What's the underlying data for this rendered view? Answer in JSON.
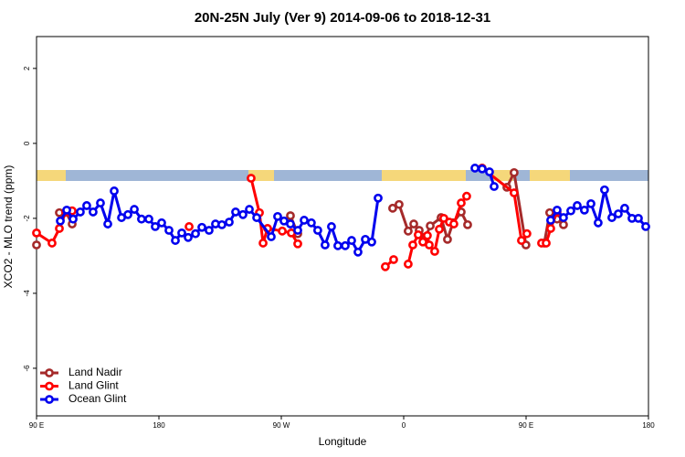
{
  "chart_data": {
    "type": "line",
    "title": "20N-25N July (Ver 9)   2014-09-06 to 2018-12-31",
    "x_label": "Longitude",
    "y_label": "XCO2 - MLO trend (ppm)",
    "xlim": [
      90,
      540
    ],
    "ylim": [
      -7.27,
      2.85
    ],
    "xticks": [
      {
        "value": 90,
        "label": "90 E"
      },
      {
        "value": 180,
        "label": "180"
      },
      {
        "value": 270,
        "label": "90 W"
      },
      {
        "value": 360,
        "label": "0"
      },
      {
        "value": 450,
        "label": "90 E"
      },
      {
        "value": 540,
        "label": "180"
      }
    ],
    "yticks": [
      -6,
      -4,
      -2,
      0,
      2
    ],
    "legend": "bottom-left",
    "series": [
      {
        "name": "Land Nadir",
        "color": "#a52a2a",
        "x": [
          90,
          null,
          106.8,
          111.5,
          116.2,
          null,
          276.7,
          282.1,
          null,
          351.9,
          356.6,
          363.3,
          367.4,
          371.4,
          376.1,
          379.5,
          387.5,
          392.2,
          396.2,
          402.3,
          407.0,
          null,
          435.9,
          441.2,
          449.9,
          null,
          463.4,
          467.4,
          472.8,
          477.5
        ],
        "values": [
          -2.71,
          null,
          -1.85,
          -1.83,
          -2.15,
          null,
          -1.93,
          -2.41,
          null,
          -1.73,
          -1.63,
          -2.34,
          -2.15,
          -2.32,
          -2.51,
          -2.2,
          -1.98,
          -2.56,
          -2.12,
          -1.83,
          -2.17,
          null,
          -1.17,
          -0.78,
          -2.71,
          null,
          -2.66,
          -1.85,
          -2.02,
          -2.17
        ]
      },
      {
        "name": "Land Glint",
        "color": "#ff0000",
        "x": [
          90,
          101.4,
          106.8,
          111.5,
          116.2,
          null,
          202.2,
          null,
          247.8,
          253.9,
          256.6,
          259.9,
          270.7,
          277.4,
          282.1,
          null,
          346.5,
          352.6,
          null,
          363.3,
          366.7,
          370.7,
          374.1,
          377.4,
          378.8,
          382.8,
          386.2,
          389.5,
          393.6,
          396.9,
          402.3,
          406.3,
          null,
          417.7,
          441.2,
          446.6,
          450.6,
          null,
          461.4,
          464.8,
          468.1,
          472.8
        ],
        "values": [
          -2.39,
          -2.66,
          -2.27,
          -1.83,
          -1.8,
          null,
          -2.22,
          null,
          -0.93,
          -1.85,
          -2.66,
          -2.27,
          -2.34,
          -2.39,
          -2.68,
          null,
          -3.29,
          -3.1,
          null,
          -3.22,
          -2.71,
          -2.44,
          -2.63,
          -2.46,
          -2.71,
          -2.88,
          -2.29,
          -2.0,
          -2.1,
          -2.15,
          -1.59,
          -1.41,
          null,
          -0.66,
          -1.32,
          -2.59,
          -2.41,
          null,
          -2.66,
          -2.66,
          -2.27,
          -1.83
        ]
      },
      {
        "name": "Ocean Glint",
        "color": "#0000ee",
        "x": [
          107.5,
          112.2,
          116.9,
          122.2,
          126.9,
          131.6,
          137.0,
          142.4,
          147.1,
          152.5,
          157.2,
          161.9,
          167.2,
          172.6,
          177.3,
          182.0,
          187.4,
          192.1,
          196.8,
          201.5,
          206.9,
          211.6,
          216.9,
          221.6,
          226.3,
          231.7,
          236.4,
          241.8,
          246.5,
          251.9,
          262.6,
          267.3,
          272.0,
          276.7,
          282.1,
          286.8,
          292.1,
          296.8,
          302.2,
          306.9,
          311.6,
          317.0,
          321.7,
          326.4,
          331.8,
          336.5,
          341.2,
          null,
          412.4,
          417.7,
          423.1,
          426.5,
          null,
          468.1,
          472.8,
          477.5,
          482.9,
          487.6,
          492.9,
          497.7,
          503.0,
          507.7,
          513.1,
          517.8,
          522.5,
          527.9,
          532.6,
          538.0
        ],
        "values": [
          -2.07,
          -1.78,
          -2.02,
          -1.83,
          -1.66,
          -1.83,
          -1.59,
          -2.15,
          -1.27,
          -1.98,
          -1.9,
          -1.76,
          -2.02,
          -2.02,
          -2.22,
          -2.12,
          -2.32,
          -2.59,
          -2.39,
          -2.51,
          -2.41,
          -2.24,
          -2.32,
          -2.15,
          -2.17,
          -2.1,
          -1.83,
          -1.9,
          -1.76,
          -1.98,
          -2.49,
          -1.95,
          -2.07,
          -2.15,
          -2.32,
          -2.05,
          -2.12,
          -2.32,
          -2.71,
          -2.22,
          -2.73,
          -2.73,
          -2.59,
          -2.9,
          -2.56,
          -2.63,
          -1.46,
          null,
          -0.66,
          -0.68,
          -0.76,
          -1.15,
          null,
          -2.05,
          -1.78,
          -1.98,
          -1.8,
          -1.66,
          -1.78,
          -1.61,
          -2.12,
          -1.24,
          -1.98,
          -1.88,
          -1.73,
          -2.0,
          -2.0,
          -2.22
        ]
      }
    ]
  }
}
